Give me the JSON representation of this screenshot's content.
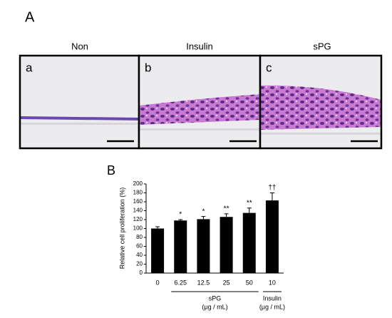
{
  "panel_a": {
    "letter": "A",
    "panels": [
      {
        "title": "Non",
        "label": "a"
      },
      {
        "title": "Insulin",
        "label": "b"
      },
      {
        "title": "sPG",
        "label": "c"
      }
    ]
  },
  "chart_data": {
    "type": "bar",
    "letter": "B",
    "y_label": "Relative cell proliferation (%)",
    "categories": [
      "0",
      "6.25",
      "12.5",
      "25",
      "50",
      "10"
    ],
    "values": [
      100,
      118,
      121,
      126,
      135,
      163
    ],
    "errors": [
      4,
      2,
      6,
      7,
      11,
      17
    ],
    "annotations": [
      null,
      "*",
      "*",
      "**",
      "**",
      "††"
    ],
    "groups": [
      {
        "name": "sPG",
        "unit": "(μg / mL)",
        "from": 1,
        "to": 4
      },
      {
        "name": "Insulin",
        "unit": "(μg / mL)",
        "from": 5,
        "to": 5
      }
    ],
    "color": "#000000",
    "ylim": [
      0,
      200
    ],
    "yticks": [
      0,
      20,
      40,
      60,
      80,
      100,
      120,
      140,
      160,
      180,
      200
    ]
  }
}
